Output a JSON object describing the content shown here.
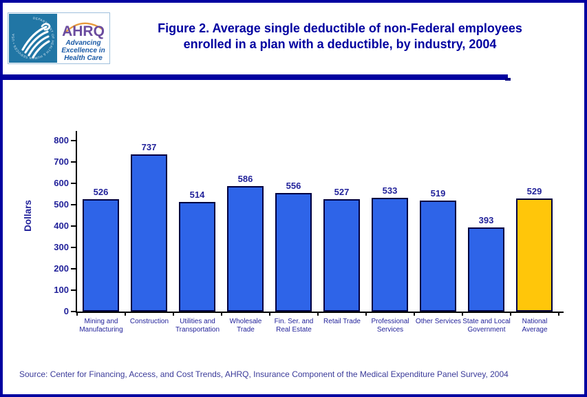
{
  "header": {
    "title_line1": "Figure 2. Average single deductible of non-Federal employees",
    "title_line2": "enrolled in a plan with a deductible, by industry, 2004",
    "logo": {
      "ring_text": "DEPARTMENT OF HEALTH & HUMAN SERVICES • USA",
      "ahrq": "AHRQ",
      "tagline_line1": "Advancing",
      "tagline_line2": "Excellence in",
      "tagline_line3": "Health Care"
    }
  },
  "chart_data": {
    "type": "bar",
    "title": "Figure 2. Average single deductible of non-Federal employees enrolled in a plan with a deductible, by industry, 2004",
    "xlabel": "",
    "ylabel": "Dollars",
    "ylim": [
      0,
      800
    ],
    "ytick_step": 100,
    "grid": false,
    "legend": false,
    "categories": [
      "Mining and\nManufacturing",
      "Construction",
      "Utilities and\nTransportation",
      "Wholesale\nTrade",
      "Fin. Ser. and\nReal Estate",
      "Retail Trade",
      "Professional\nServices",
      "Other Services",
      "State and Local\nGovernment",
      "National\nAverage"
    ],
    "values": [
      526,
      737,
      514,
      586,
      556,
      527,
      533,
      519,
      393,
      529
    ],
    "highlight_index": 9,
    "bar_color_default": "#2E64E8",
    "bar_color_highlight": "#FFC60A"
  },
  "colors": {
    "accent_navy": "#0000A0",
    "label_navy": "#22229A",
    "bar_blue": "#2E64E8",
    "bar_gold": "#FFC60A",
    "axis_black": "#000000",
    "source_text": "#3A3A99",
    "logo_teal": "#2176A5",
    "logo_purple": "#6B4C9F",
    "logo_blue": "#1A5AA6",
    "logo_arc_orange": "#E89A3C"
  },
  "source": "Source: Center for Financing, Access, and Cost Trends, AHRQ, Insurance Component of the Medical Expenditure Panel Survey, 2004"
}
